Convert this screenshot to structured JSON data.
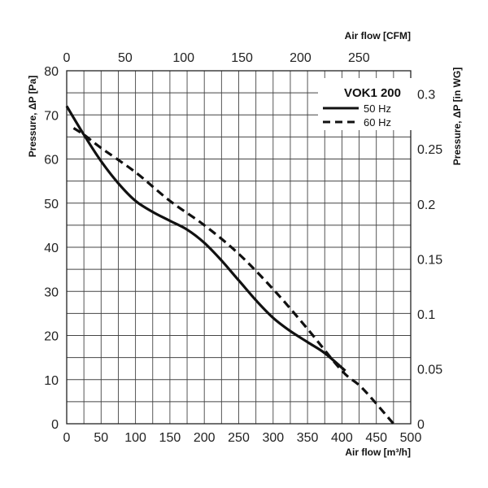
{
  "chart_data": {
    "type": "line",
    "title": "VOK1 200",
    "xlabel": "Air flow [m³/h]",
    "x2label": "Air flow [CFM]",
    "ylabel": "Pressure, ΔP [Pa]",
    "y2label": "Pressure, ΔP [in WG]",
    "xlim": [
      0,
      500
    ],
    "ylim": [
      0,
      80
    ],
    "x2lim": [
      0,
      294.3
    ],
    "y2lim": [
      0,
      0.3212
    ],
    "x_ticks": [
      "0",
      "50",
      "100",
      "150",
      "200",
      "250",
      "300",
      "350",
      "400",
      "450",
      "500"
    ],
    "y_ticks": [
      "0",
      "10",
      "20",
      "30",
      "40",
      "50",
      "60",
      "70",
      "80"
    ],
    "x2_ticks": [
      "0",
      "50",
      "100",
      "150",
      "200",
      "250"
    ],
    "y2_ticks": [
      "0",
      "0.05",
      "0.1",
      "0.15",
      "0.2",
      "0.25",
      "0.3"
    ],
    "grid": true,
    "legend_position": "top-right",
    "series": [
      {
        "name": "50 Hz",
        "style": "solid",
        "color": "#111111",
        "x": [
          0,
          25,
          50,
          75,
          100,
          125,
          150,
          175,
          200,
          225,
          250,
          275,
          300,
          325,
          350,
          375,
          405
        ],
        "y": [
          72,
          65.5,
          59.5,
          54.5,
          50.5,
          48,
          46,
          44,
          41,
          37,
          32.5,
          28,
          24,
          21,
          18.5,
          16,
          12
        ]
      },
      {
        "name": "60 Hz",
        "style": "dashed",
        "color": "#111111",
        "x": [
          10,
          25,
          50,
          100,
          150,
          200,
          250,
          300,
          350,
          400,
          430,
          475
        ],
        "y": [
          67,
          65.5,
          62.5,
          57,
          50.5,
          45,
          38.5,
          30.5,
          21.5,
          12,
          8,
          0
        ]
      }
    ]
  }
}
